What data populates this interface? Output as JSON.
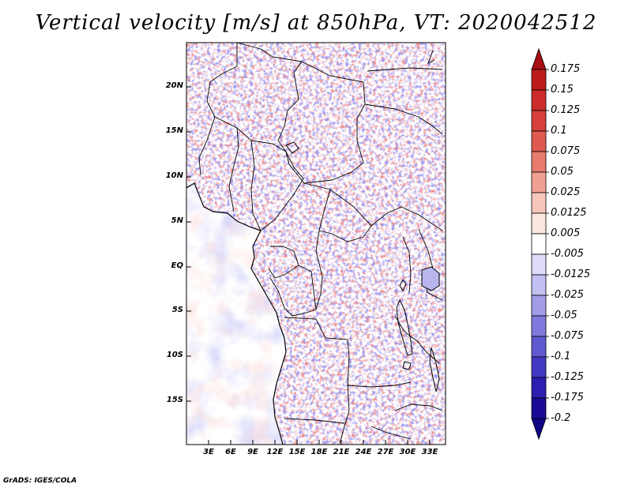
{
  "title": "Vertical velocity [m/s] at 850hPa, VT: 2020042512",
  "y_ticks": [
    "20N",
    "15N",
    "10N",
    "5N",
    "EQ",
    "5S",
    "10S",
    "15S"
  ],
  "x_ticks": [
    "3E",
    "6E",
    "9E",
    "12E",
    "15E",
    "18E",
    "21E",
    "24E",
    "27E",
    "30E",
    "33E"
  ],
  "colorbar": {
    "labels": [
      "0.175",
      "0.15",
      "0.125",
      "0.1",
      "0.075",
      "0.05",
      "0.025",
      "0.0125",
      "0.005",
      "-0.005",
      "-0.0125",
      "-0.025",
      "-0.05",
      "-0.075",
      "-0.1",
      "-0.125",
      "-0.175",
      "-0.2"
    ],
    "colors": [
      "#a50f15",
      "#bd1a1a",
      "#cb2b2b",
      "#d63f3a",
      "#e05a50",
      "#e87a6e",
      "#f0a092",
      "#f7c6bb",
      "#fce6e0",
      "#ffffff",
      "#dedcf8",
      "#c2bff2",
      "#a29ce9",
      "#807ade",
      "#6059d2",
      "#4338c4",
      "#2c1eb0",
      "#1a0a96",
      "#100585"
    ]
  },
  "credit": "GrADS: IGES/COLA"
}
